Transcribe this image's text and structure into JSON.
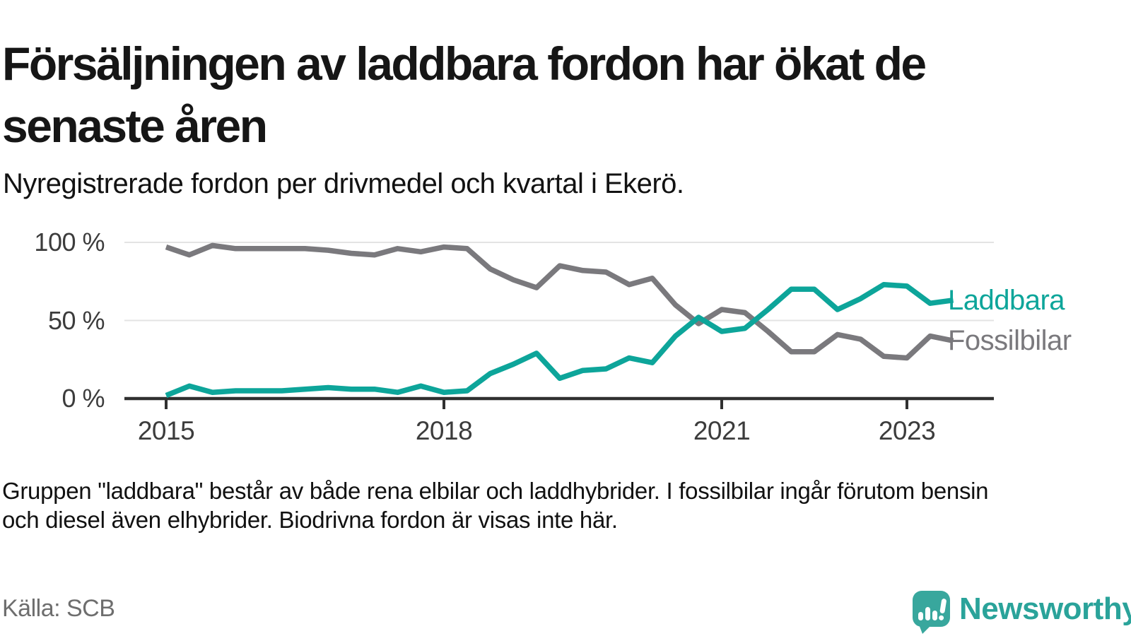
{
  "header": {
    "title_line1": "Försäljningen av laddbara fordon har ökat de",
    "title_line2": "senaste åren",
    "subtitle": "Nyregistrerade fordon per drivmedel och kvartal i Ekerö."
  },
  "chart_data": {
    "type": "line",
    "title": "Försäljningen av laddbara fordon har ökat de senaste åren",
    "subtitle": "Nyregistrerade fordon per drivmedel och kvartal i Ekerö.",
    "x": [
      "2015 Q1",
      "2015 Q2",
      "2015 Q3",
      "2015 Q4",
      "2016 Q1",
      "2016 Q2",
      "2016 Q3",
      "2016 Q4",
      "2017 Q1",
      "2017 Q2",
      "2017 Q3",
      "2017 Q4",
      "2018 Q1",
      "2018 Q2",
      "2018 Q3",
      "2018 Q4",
      "2019 Q1",
      "2019 Q2",
      "2019 Q3",
      "2019 Q4",
      "2020 Q1",
      "2020 Q2",
      "2020 Q3",
      "2020 Q4",
      "2021 Q1",
      "2021 Q2",
      "2021 Q3",
      "2021 Q4",
      "2022 Q1",
      "2022 Q2",
      "2022 Q3",
      "2022 Q4",
      "2023 Q1",
      "2023 Q2",
      "2023 Q3"
    ],
    "series": [
      {
        "name": "Laddbara",
        "color": "#0da59a",
        "values": [
          2,
          8,
          4,
          5,
          5,
          5,
          6,
          7,
          6,
          6,
          4,
          8,
          4,
          5,
          16,
          22,
          29,
          13,
          18,
          19,
          26,
          23,
          40,
          52,
          43,
          45,
          57,
          70,
          70,
          57,
          64,
          73,
          72,
          61,
          63
        ]
      },
      {
        "name": "Fossilbilar",
        "color": "#7a797d",
        "values": [
          97,
          92,
          98,
          96,
          96,
          96,
          96,
          95,
          93,
          92,
          96,
          94,
          97,
          96,
          83,
          76,
          71,
          85,
          82,
          81,
          73,
          77,
          60,
          48,
          57,
          55,
          43,
          30,
          30,
          41,
          38,
          27,
          26,
          40,
          37
        ]
      }
    ],
    "y_ticks": [
      {
        "label": "100 %",
        "value": 100
      },
      {
        "label": "50 %",
        "value": 50
      },
      {
        "label": "0 %",
        "value": 0
      }
    ],
    "x_ticks": [
      {
        "label": "2015",
        "index": 0
      },
      {
        "label": "2018",
        "index": 12
      },
      {
        "label": "2021",
        "index": 24
      },
      {
        "label": "2023",
        "index": 32
      }
    ],
    "ylim": [
      0,
      100
    ],
    "unit": "%",
    "grid": "horizontal",
    "legend_position": "end-of-line-labels"
  },
  "footnote": {
    "line1": "Gruppen \"laddbara\" består av både rena elbilar och laddhybrider. I fossilbilar ingår förutom bensin",
    "line2": "och diesel även elhybrider. Biodrivna fordon är visas inte här."
  },
  "source": "Källa: SCB",
  "logo": {
    "text": "Newsworthy",
    "icon": "newsworthy-speech-bubble-bar-chart-icon",
    "brand_color": "#2aa39a"
  }
}
